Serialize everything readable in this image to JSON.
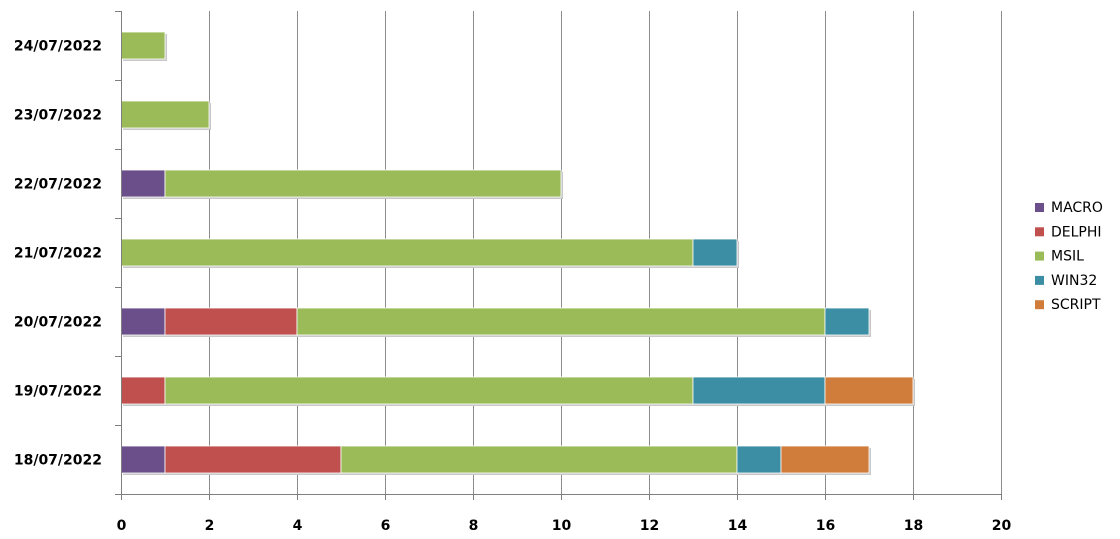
{
  "chart_data": {
    "type": "bar",
    "orientation": "horizontal",
    "stacked": true,
    "categories": [
      "18/07/2022",
      "19/07/2022",
      "20/07/2022",
      "21/07/2022",
      "22/07/2022",
      "23/07/2022",
      "24/07/2022"
    ],
    "series": [
      {
        "name": "MACRO",
        "color": "#6b4f8a",
        "values": [
          1,
          0,
          1,
          0,
          1,
          0,
          0
        ]
      },
      {
        "name": "DELPHI",
        "color": "#c0504d",
        "values": [
          4,
          1,
          3,
          0,
          0,
          0,
          0
        ]
      },
      {
        "name": "MSIL",
        "color": "#9bbb59",
        "values": [
          9,
          12,
          12,
          13,
          9,
          2,
          1
        ]
      },
      {
        "name": "WIN32",
        "color": "#3c8ea5",
        "values": [
          1,
          3,
          1,
          1,
          0,
          0,
          0
        ]
      },
      {
        "name": "SCRIPT",
        "color": "#d07c3a",
        "values": [
          2,
          2,
          0,
          0,
          0,
          0,
          0
        ]
      }
    ],
    "xlim": [
      0,
      20
    ],
    "x_ticks": [
      "0",
      "2",
      "4",
      "6",
      "8",
      "10",
      "12",
      "14",
      "16",
      "18",
      "20"
    ],
    "grid": true,
    "legend_position": "right",
    "title": "",
    "xlabel": "",
    "ylabel": ""
  }
}
